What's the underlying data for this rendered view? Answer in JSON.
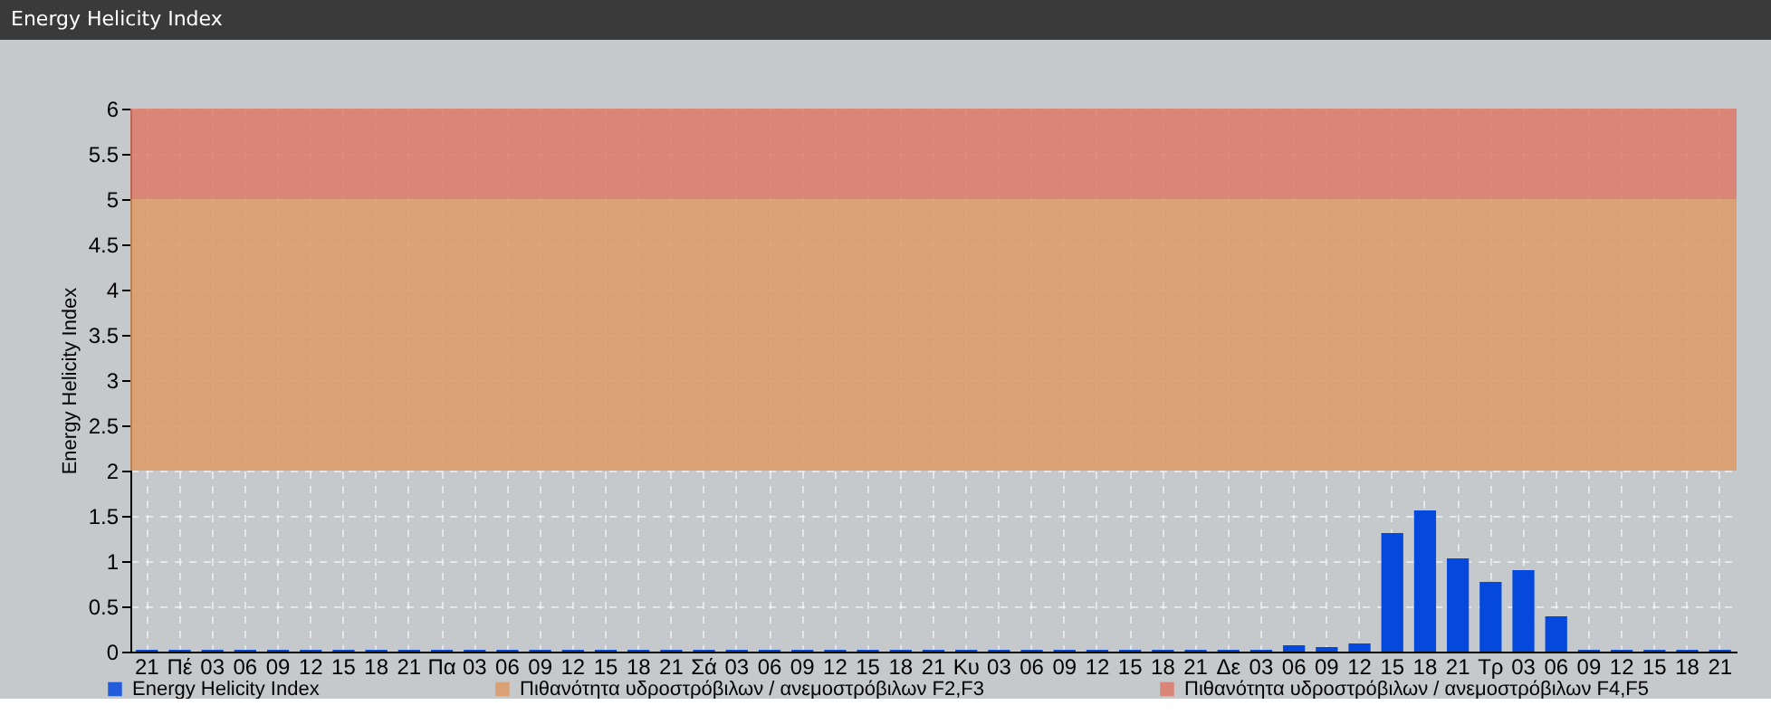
{
  "chart_data": {
    "type": "bar",
    "title": "Energy Helicity Index",
    "ylabel": "Energy Helicity Index",
    "categories": [
      "21",
      "Πέ",
      "03",
      "06",
      "09",
      "12",
      "15",
      "18",
      "21",
      "Πα",
      "03",
      "06",
      "09",
      "12",
      "15",
      "18",
      "21",
      "Σά",
      "03",
      "06",
      "09",
      "12",
      "15",
      "18",
      "21",
      "Κυ",
      "03",
      "06",
      "09",
      "12",
      "15",
      "18",
      "21",
      "Δε",
      "03",
      "06",
      "09",
      "12",
      "15",
      "18",
      "21",
      "Τρ",
      "03",
      "06",
      "09",
      "12",
      "15",
      "18",
      "21"
    ],
    "series": [
      {
        "name": "Energy Helicity Index",
        "color": "#0549dc",
        "values": [
          0.02,
          0.02,
          0.02,
          0.02,
          0.02,
          0.02,
          0.02,
          0.02,
          0.02,
          0.02,
          0.02,
          0.02,
          0.02,
          0.02,
          0.02,
          0.02,
          0.02,
          0.02,
          0.02,
          0.02,
          0.02,
          0.02,
          0.02,
          0.02,
          0.02,
          0.02,
          0.02,
          0.02,
          0.02,
          0.02,
          0.02,
          0.02,
          0.02,
          0.02,
          0.02,
          0.07,
          0.05,
          0.09,
          1.31,
          1.56,
          1.03,
          0.77,
          0.9,
          0.39,
          0.02,
          0.02,
          0.02,
          0.02,
          0.02
        ]
      }
    ],
    "ylim": [
      0,
      6
    ],
    "yticks": [
      0,
      0.5,
      1,
      1.5,
      2,
      2.5,
      3,
      3.5,
      4,
      4.5,
      5,
      5.5,
      6
    ],
    "grid": true,
    "legend": "bottom",
    "bands": [
      {
        "axis": "y",
        "from": 2,
        "to": 5,
        "label": "Πιθανότητα υδροστρόβιλων / ανεμοστρόβιλων F2,F3",
        "color": "#dc9a64"
      },
      {
        "axis": "y",
        "from": 5,
        "to": 6,
        "label": "Πιθανότητα υδροστρόβιλων / ανεμοστρόβιλων F4,F5",
        "color": "#dc7a68"
      }
    ]
  }
}
